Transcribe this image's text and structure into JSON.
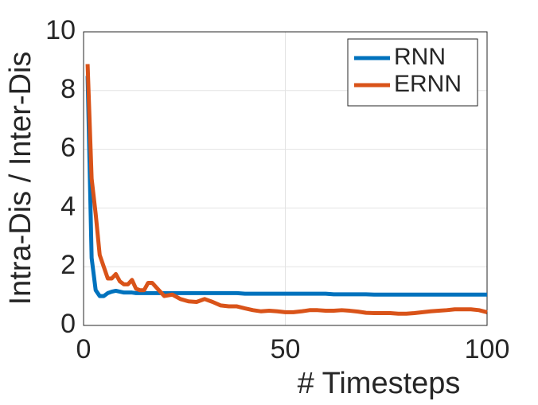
{
  "chart_data": {
    "type": "line",
    "xlabel": "# Timesteps",
    "ylabel": "Intra-Dis / Inter-Dis",
    "x": [
      1,
      2,
      3,
      4,
      5,
      6,
      7,
      8,
      9,
      10,
      11,
      12,
      13,
      14,
      15,
      16,
      17,
      18,
      19,
      20,
      22,
      24,
      26,
      28,
      30,
      32,
      34,
      36,
      38,
      40,
      42,
      44,
      46,
      48,
      50,
      52,
      54,
      56,
      58,
      60,
      62,
      64,
      66,
      68,
      70,
      72,
      74,
      76,
      78,
      80,
      82,
      84,
      86,
      88,
      90,
      92,
      94,
      96,
      98,
      100
    ],
    "series": [
      {
        "name": "RNN",
        "color": "#0072bd",
        "values": [
          8.5,
          2.3,
          1.2,
          1.0,
          1.0,
          1.1,
          1.15,
          1.18,
          1.15,
          1.12,
          1.12,
          1.12,
          1.1,
          1.1,
          1.1,
          1.1,
          1.1,
          1.1,
          1.1,
          1.1,
          1.1,
          1.1,
          1.1,
          1.1,
          1.1,
          1.1,
          1.1,
          1.1,
          1.1,
          1.08,
          1.08,
          1.08,
          1.08,
          1.08,
          1.08,
          1.08,
          1.08,
          1.08,
          1.08,
          1.08,
          1.06,
          1.06,
          1.06,
          1.06,
          1.06,
          1.05,
          1.05,
          1.05,
          1.05,
          1.05,
          1.05,
          1.05,
          1.05,
          1.05,
          1.05,
          1.05,
          1.05,
          1.05,
          1.05,
          1.05
        ]
      },
      {
        "name": "ERNN",
        "color": "#d95319",
        "values": [
          8.9,
          5.0,
          3.8,
          2.4,
          2.0,
          1.6,
          1.6,
          1.75,
          1.5,
          1.4,
          1.4,
          1.55,
          1.25,
          1.2,
          1.2,
          1.45,
          1.45,
          1.3,
          1.15,
          1.0,
          1.05,
          0.9,
          0.82,
          0.8,
          0.9,
          0.8,
          0.68,
          0.65,
          0.65,
          0.58,
          0.52,
          0.48,
          0.5,
          0.48,
          0.45,
          0.45,
          0.48,
          0.52,
          0.52,
          0.5,
          0.5,
          0.52,
          0.5,
          0.47,
          0.43,
          0.42,
          0.42,
          0.42,
          0.4,
          0.4,
          0.42,
          0.45,
          0.48,
          0.5,
          0.52,
          0.55,
          0.55,
          0.55,
          0.52,
          0.45
        ]
      }
    ],
    "xlim": [
      0,
      100
    ],
    "xticks": [
      0,
      50,
      100
    ],
    "ylim": [
      0,
      10
    ],
    "yticks": [
      0,
      2,
      4,
      6,
      8,
      10
    ],
    "grid": true,
    "legend": "top-right"
  }
}
